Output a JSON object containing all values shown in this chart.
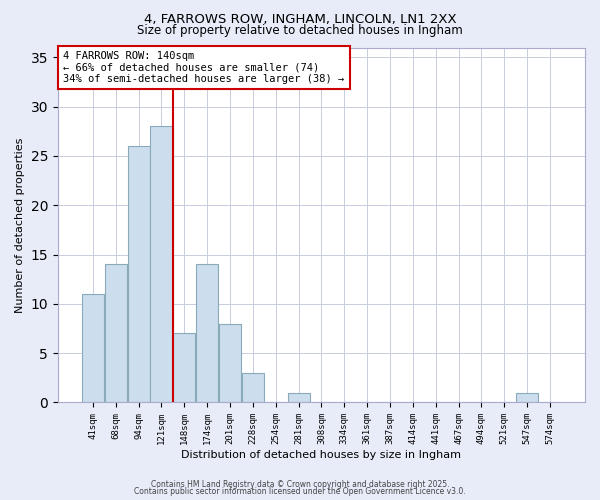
{
  "title": "4, FARROWS ROW, INGHAM, LINCOLN, LN1 2XX",
  "subtitle": "Size of property relative to detached houses in Ingham",
  "xlabel": "Distribution of detached houses by size in Ingham",
  "ylabel": "Number of detached properties",
  "bar_labels": [
    "41sqm",
    "68sqm",
    "94sqm",
    "121sqm",
    "148sqm",
    "174sqm",
    "201sqm",
    "228sqm",
    "254sqm",
    "281sqm",
    "308sqm",
    "334sqm",
    "361sqm",
    "387sqm",
    "414sqm",
    "441sqm",
    "467sqm",
    "494sqm",
    "521sqm",
    "547sqm",
    "574sqm"
  ],
  "bar_values": [
    11,
    14,
    26,
    28,
    7,
    14,
    8,
    3,
    0,
    1,
    0,
    0,
    0,
    0,
    0,
    0,
    0,
    0,
    0,
    1,
    0
  ],
  "bar_color": "#ccdded",
  "bar_edgecolor": "#88aabb",
  "vline_x": 4.0,
  "vline_color": "#cc0000",
  "annotation_lines": [
    "4 FARROWS ROW: 140sqm",
    "← 66% of detached houses are smaller (74)",
    "34% of semi-detached houses are larger (38) →"
  ],
  "annotation_box_color": "#cc0000",
  "ylim": [
    0,
    36
  ],
  "yticks": [
    0,
    5,
    10,
    15,
    20,
    25,
    30,
    35
  ],
  "plot_bg": "#ffffff",
  "fig_bg": "#e8ecf8",
  "grid_color": "#c8cce0",
  "footer_line1": "Contains HM Land Registry data © Crown copyright and database right 2025.",
  "footer_line2": "Contains public sector information licensed under the Open Government Licence v3.0.",
  "title_fontsize": 9.5,
  "subtitle_fontsize": 8.5
}
